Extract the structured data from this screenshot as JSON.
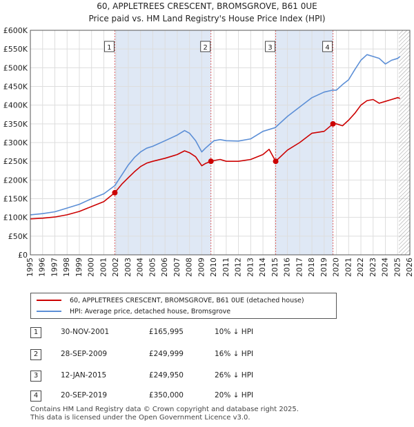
{
  "title_line1": "60, APPLETREES CRESCENT, BROMSGROVE, B61 0UE",
  "title_line2": "Price paid vs. HM Land Registry's House Price Index (HPI)",
  "legend": {
    "red_label": "60, APPLETREES CRESCENT, BROMSGROVE, B61 0UE (detached house)",
    "blue_label": "HPI: Average price, detached house, Bromsgrove"
  },
  "colors": {
    "red": "#cc0000",
    "blue": "#5b8ed6",
    "band": "#dfe8f5",
    "vline": "#e06060",
    "grid": "#dddddd"
  },
  "transactions": [
    {
      "num": "1",
      "date": "30-NOV-2001",
      "price": "£165,995",
      "hpi": "10% ↓ HPI"
    },
    {
      "num": "2",
      "date": "28-SEP-2009",
      "price": "£249,999",
      "hpi": "16% ↓ HPI"
    },
    {
      "num": "3",
      "date": "12-JAN-2015",
      "price": "£249,950",
      "hpi": "26% ↓ HPI"
    },
    {
      "num": "4",
      "date": "20-SEP-2019",
      "price": "£350,000",
      "hpi": "20% ↓ HPI"
    }
  ],
  "footer_line1": "Contains HM Land Registry data © Crown copyright and database right 2025.",
  "footer_line2": "This data is licensed under the Open Government Licence v3.0.",
  "chart_data": {
    "type": "line",
    "title": "60, APPLETREES CRESCENT, BROMSGROVE, B61 0UE",
    "subtitle": "Price paid vs. HM Land Registry's House Price Index (HPI)",
    "xlabel": "",
    "ylabel": "",
    "xlim": [
      1995,
      2026
    ],
    "ylim": [
      0,
      600000
    ],
    "xticks": [
      1995,
      1996,
      1997,
      1998,
      1999,
      2000,
      2001,
      2002,
      2003,
      2004,
      2005,
      2006,
      2007,
      2008,
      2009,
      2010,
      2011,
      2012,
      2013,
      2014,
      2015,
      2016,
      2017,
      2018,
      2019,
      2020,
      2021,
      2022,
      2023,
      2024,
      2025,
      2026
    ],
    "ytick_values": [
      0,
      50000,
      100000,
      150000,
      200000,
      250000,
      300000,
      350000,
      400000,
      450000,
      500000,
      550000,
      600000
    ],
    "ytick_labels": [
      "£0",
      "£50K",
      "£100K",
      "£150K",
      "£200K",
      "£250K",
      "£300K",
      "£350K",
      "£400K",
      "£450K",
      "£500K",
      "£550K",
      "£600K"
    ],
    "hatch_from": 2025.1,
    "series": [
      {
        "name": "HPI: Average price, detached house, Bromsgrove",
        "color": "#5b8ed6",
        "x": [
          1995.0,
          1996.0,
          1997.0,
          1998.0,
          1999.0,
          2000.0,
          2001.0,
          2001.9,
          2002.5,
          2003.0,
          2003.5,
          2004.0,
          2004.5,
          2005.0,
          2006.0,
          2007.0,
          2007.6,
          2008.0,
          2008.5,
          2009.0,
          2009.3,
          2009.75,
          2010.0,
          2010.5,
          2011.0,
          2012.0,
          2013.0,
          2014.0,
          2015.0,
          2016.0,
          2017.0,
          2018.0,
          2019.0,
          2019.7,
          2020.0,
          2020.5,
          2021.0,
          2021.5,
          2022.0,
          2022.5,
          2023.0,
          2023.5,
          2024.0,
          2024.5,
          2025.0,
          2025.2
        ],
        "y": [
          107000,
          110000,
          115000,
          125000,
          135000,
          150000,
          163000,
          185000,
          215000,
          240000,
          260000,
          275000,
          285000,
          290000,
          305000,
          320000,
          332000,
          325000,
          305000,
          275000,
          285000,
          298000,
          305000,
          308000,
          305000,
          304000,
          310000,
          330000,
          340000,
          370000,
          395000,
          420000,
          435000,
          440000,
          440000,
          455000,
          468000,
          495000,
          520000,
          535000,
          530000,
          525000,
          510000,
          520000,
          525000,
          530000
        ]
      },
      {
        "name": "60, APPLETREES CRESCENT, BROMSGROVE, B61 0UE (detached house)",
        "color": "#cc0000",
        "x": [
          1995.0,
          1996.0,
          1997.0,
          1998.0,
          1999.0,
          2000.0,
          2001.0,
          2001.9,
          2002.5,
          2003.0,
          2003.5,
          2004.0,
          2004.5,
          2005.0,
          2006.0,
          2007.0,
          2007.6,
          2008.0,
          2008.5,
          2009.0,
          2009.3,
          2009.75,
          2010.0,
          2010.5,
          2011.0,
          2012.0,
          2013.0,
          2014.0,
          2014.5,
          2015.04,
          2016.0,
          2017.0,
          2018.0,
          2019.0,
          2019.72,
          2020.0,
          2020.5,
          2021.0,
          2021.5,
          2022.0,
          2022.5,
          2023.0,
          2023.5,
          2024.0,
          2024.5,
          2025.0,
          2025.2
        ],
        "y": [
          96000,
          98000,
          101000,
          107000,
          116000,
          129000,
          142000,
          165995,
          190000,
          206000,
          222000,
          236000,
          245000,
          250000,
          258000,
          268000,
          278000,
          273000,
          262000,
          238000,
          244000,
          249999,
          252000,
          255000,
          250000,
          250000,
          255000,
          268000,
          282000,
          249950,
          280000,
          300000,
          325000,
          330000,
          350000,
          350000,
          345000,
          360000,
          378000,
          400000,
          412000,
          415000,
          405000,
          410000,
          415000,
          420000,
          418000
        ]
      }
    ],
    "sale_points": [
      {
        "label": "1",
        "x": 2001.9,
        "y": 165995
      },
      {
        "label": "2",
        "x": 2009.75,
        "y": 249999
      },
      {
        "label": "3",
        "x": 2015.04,
        "y": 249950
      },
      {
        "label": "4",
        "x": 2019.72,
        "y": 350000
      }
    ],
    "shaded_bands": [
      [
        2001.9,
        2009.75
      ],
      [
        2015.04,
        2019.72
      ]
    ],
    "legend_position": "bottom"
  }
}
